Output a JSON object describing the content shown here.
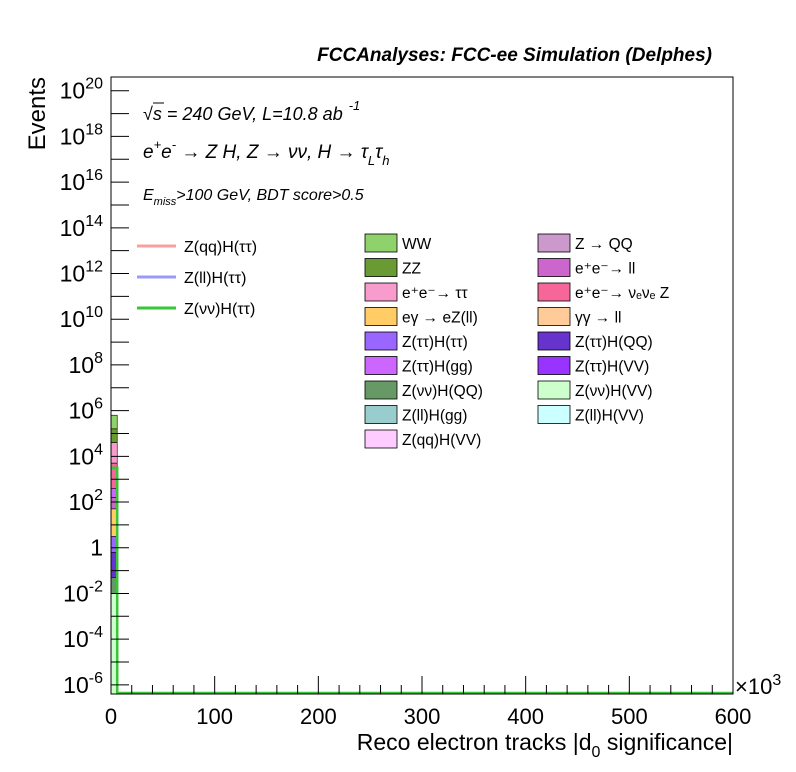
{
  "chart_data": {
    "type": "bar",
    "stacked": true,
    "title": "FCCAnalyses: FCC-ee Simulation (Delphes)",
    "xlabel": "Reco electron tracks |d_0 significance|",
    "x_multiplier": "×10^3",
    "ylabel": "Events",
    "ylog": true,
    "xlim": [
      0,
      600
    ],
    "ylim_exp": [
      -6.4,
      20.6
    ],
    "grid": false,
    "legend_placement": "upper-right",
    "annotations": {
      "line1": "√s = 240 GeV, L=10.8 ab⁻¹",
      "line2": "e⁺e⁻ → Z H, Z → νν, H → τ_L τ_h",
      "line3": "E_miss>100 GeV, BDT score>0.5"
    },
    "x_ticks": [
      "0",
      "100",
      "200",
      "300",
      "400",
      "500",
      "600"
    ],
    "y_ticks": [
      {
        "exp": 20,
        "label": "10^20"
      },
      {
        "exp": 18,
        "label": "10^18"
      },
      {
        "exp": 16,
        "label": "10^16"
      },
      {
        "exp": 14,
        "label": "10^14"
      },
      {
        "exp": 12,
        "label": "10^12"
      },
      {
        "exp": 10,
        "label": "10^10"
      },
      {
        "exp": 8,
        "label": "10^8"
      },
      {
        "exp": 6,
        "label": "10^6"
      },
      {
        "exp": 4,
        "label": "10^4"
      },
      {
        "exp": 2,
        "label": "10^2"
      },
      {
        "exp": 0,
        "label": "1"
      },
      {
        "exp": -2,
        "label": "10^-2"
      },
      {
        "exp": -4,
        "label": "10^-4"
      },
      {
        "exp": -6,
        "label": "10^-6"
      }
    ],
    "signal_series": [
      {
        "name": "Z(qq)H(ττ)",
        "color": "#f7a19f"
      },
      {
        "name": "Z(ll)H(ττ)",
        "color": "#9b9bf7"
      },
      {
        "name": "Z(νν)H(ττ)",
        "color": "#3ac43a"
      }
    ],
    "background_series": [
      {
        "name": "WW",
        "color": "#8fd16a"
      },
      {
        "name": "Z → QQ",
        "color": "#cb99cc"
      },
      {
        "name": "ZZ",
        "color": "#6a9a33"
      },
      {
        "name": "e⁺e⁻→ ll",
        "color": "#cc66cc"
      },
      {
        "name": "e⁺e⁻→ ττ",
        "color": "#f79ccc"
      },
      {
        "name": "e⁺e⁻→ νₑνₑ Z",
        "color": "#f76699"
      },
      {
        "name": "eγ → eZ(ll)",
        "color": "#ffcc66"
      },
      {
        "name": "γγ → ll",
        "color": "#ffcc99"
      },
      {
        "name": "Z(ττ)H(ττ)",
        "color": "#9966ff"
      },
      {
        "name": "Z(ττ)H(QQ)",
        "color": "#6633cc"
      },
      {
        "name": "Z(ττ)H(gg)",
        "color": "#cc66ff"
      },
      {
        "name": "Z(ττ)H(VV)",
        "color": "#9933ff"
      },
      {
        "name": "Z(νν)H(QQ)",
        "color": "#669966"
      },
      {
        "name": "Z(νν)H(VV)",
        "color": "#ccffcc"
      },
      {
        "name": "Z(ll)H(gg)",
        "color": "#99cccc"
      },
      {
        "name": "Z(ll)H(VV)",
        "color": "#ccffff"
      },
      {
        "name": "Z(qq)H(VV)",
        "color": "#ffccff"
      }
    ],
    "stack_bin": {
      "x_range": [
        0,
        6
      ],
      "segments": [
        {
          "name": "WW",
          "bottom_exp": 5.2,
          "top_exp": 5.8,
          "color": "#8fd16a"
        },
        {
          "name": "ZZ",
          "bottom_exp": 4.6,
          "top_exp": 5.2,
          "color": "#6a9a33"
        },
        {
          "name": "e⁺e⁻→ ττ",
          "bottom_exp": 3.7,
          "top_exp": 4.6,
          "color": "#f79ccc"
        },
        {
          "name": "e⁺e⁻→ νₑνₑ Z",
          "bottom_exp": 2.6,
          "top_exp": 3.7,
          "color": "#f76699"
        },
        {
          "name": "Z(ττ)H(gg)",
          "bottom_exp": 2.2,
          "top_exp": 2.6,
          "color": "#cc66ff"
        },
        {
          "name": "e⁺e⁻→ ll",
          "bottom_exp": 1.7,
          "top_exp": 2.2,
          "color": "#cc66cc"
        },
        {
          "name": "eγ → eZ(ll)",
          "bottom_exp": 0.5,
          "top_exp": 1.7,
          "color": "#ffcc66"
        },
        {
          "name": "Z(ττ)H(ττ)",
          "bottom_exp": -0.2,
          "top_exp": 0.5,
          "color": "#9966ff"
        },
        {
          "name": "Z(ττ)H(QQ)",
          "bottom_exp": -1.3,
          "top_exp": -0.2,
          "color": "#6633cc"
        },
        {
          "name": "Z(νν)H(QQ)",
          "bottom_exp": -2.0,
          "top_exp": -1.3,
          "color": "#669966"
        },
        {
          "name": "Z(νν)H(VV)",
          "bottom_exp": -6.4,
          "top_exp": -2.0,
          "color": "#ccffcc"
        }
      ]
    },
    "signal_lines": [
      {
        "name": "Z(νν)H(ττ)",
        "x_edge": 6,
        "peak_exp": 3.5,
        "color": "#3ac43a"
      }
    ]
  }
}
